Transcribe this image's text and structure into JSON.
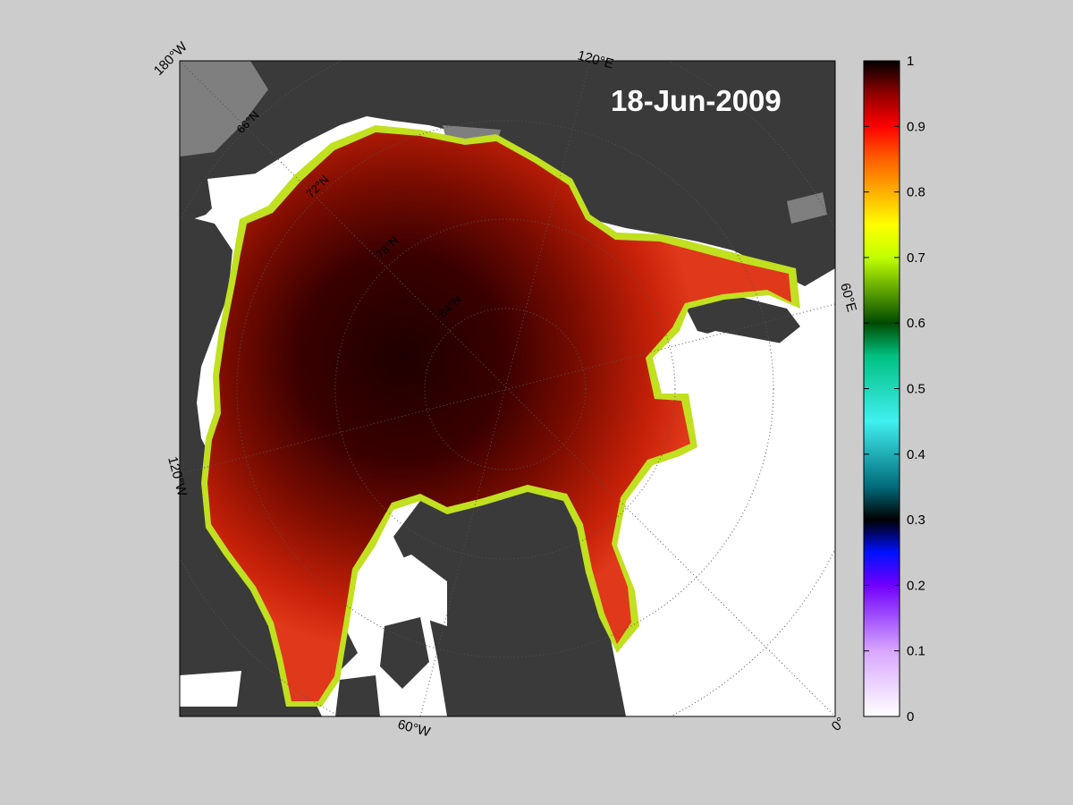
{
  "map": {
    "date_label": "18-Jun-2009",
    "corner_labels": [
      {
        "id": "lon-180w",
        "text": "180°W"
      },
      {
        "id": "lon-120e",
        "text": "120°E"
      },
      {
        "id": "lon-60e",
        "text": "60°E"
      },
      {
        "id": "lon-120w",
        "text": "120°W"
      },
      {
        "id": "lon-60w",
        "text": "60°W"
      },
      {
        "id": "lon-0",
        "text": "0°"
      }
    ],
    "lat_labels": [
      {
        "id": "lat-66n",
        "text": "66°N"
      },
      {
        "id": "lat-72n",
        "text": "72°N"
      },
      {
        "id": "lat-78n",
        "text": "78°N"
      },
      {
        "id": "lat-84n",
        "text": "84°N"
      }
    ],
    "colors": {
      "background": "#cccccc",
      "land": "#3a3a3a",
      "land_light": "#7f7f7f",
      "open_water": "#ffffff",
      "ice_core": "#1e0000",
      "ice_edge": "#d42a10"
    }
  },
  "colorbar": {
    "min": 0,
    "max": 1,
    "ticks": [
      "0",
      "0.1",
      "0.2",
      "0.3",
      "0.4",
      "0.5",
      "0.6",
      "0.7",
      "0.8",
      "0.9",
      "1"
    ],
    "stops": [
      {
        "v": 0.0,
        "c": "#ffffff"
      },
      {
        "v": 0.1,
        "c": "#d7a6ff"
      },
      {
        "v": 0.2,
        "c": "#7000ff"
      },
      {
        "v": 0.25,
        "c": "#0010ff"
      },
      {
        "v": 0.3,
        "c": "#000000"
      },
      {
        "v": 0.35,
        "c": "#006a7a"
      },
      {
        "v": 0.45,
        "c": "#40f0f0"
      },
      {
        "v": 0.55,
        "c": "#00c080"
      },
      {
        "v": 0.6,
        "c": "#004a00"
      },
      {
        "v": 0.7,
        "c": "#c0ff00"
      },
      {
        "v": 0.75,
        "c": "#ffff00"
      },
      {
        "v": 0.85,
        "c": "#ff6000"
      },
      {
        "v": 0.9,
        "c": "#ff0000"
      },
      {
        "v": 0.95,
        "c": "#900000"
      },
      {
        "v": 1.0,
        "c": "#000000"
      }
    ]
  }
}
